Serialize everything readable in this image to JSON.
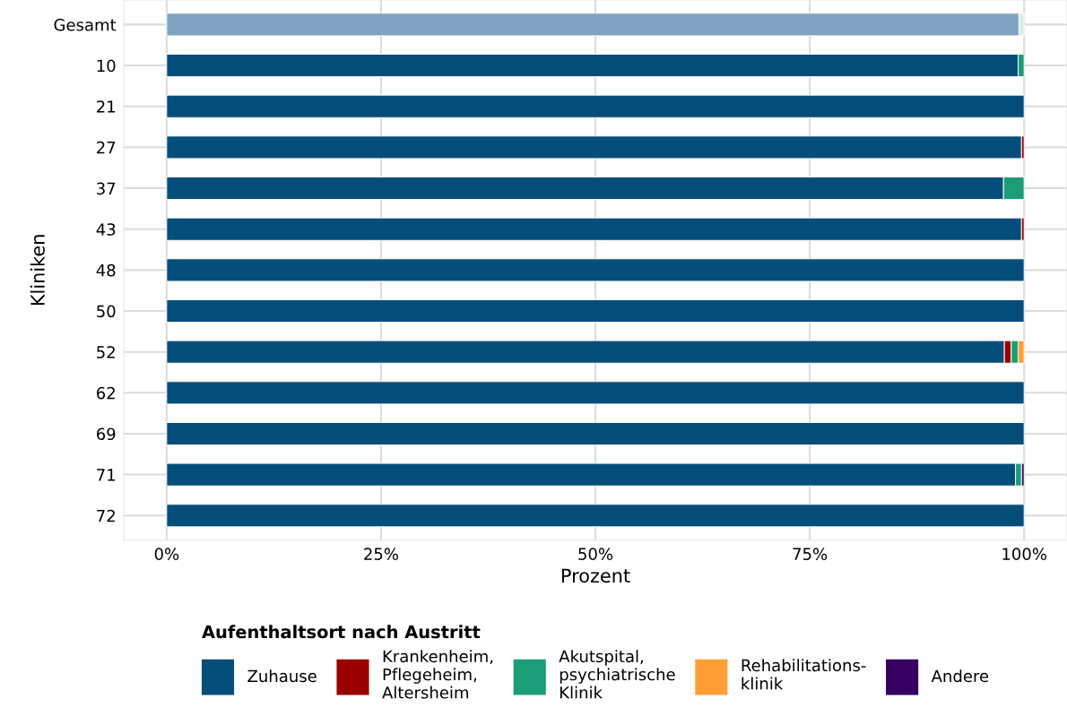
{
  "chart_data": {
    "type": "bar",
    "orientation": "horizontal",
    "stacked": true,
    "categories": [
      "Gesamt",
      "10",
      "21",
      "27",
      "37",
      "43",
      "48",
      "50",
      "52",
      "62",
      "69",
      "71",
      "72"
    ],
    "series": [
      {
        "name": "Zuhause",
        "color": "#054e7a",
        "colors": [
          "#7fa3c0",
          "#054e7a",
          "#054e7a",
          "#054e7a",
          "#054e7a",
          "#054e7a",
          "#054e7a",
          "#054e7a",
          "#054e7a",
          "#054e7a",
          "#054e7a",
          "#054e7a",
          "#054e7a"
        ],
        "values": [
          99.4,
          99.3,
          100,
          99.7,
          97.6,
          99.7,
          100,
          100,
          97.7,
          100,
          100,
          99.0,
          100
        ]
      },
      {
        "name": "Krankenheim,\nPflegeheim,\nAltersheim",
        "color": "#9b0000",
        "values": [
          0,
          0,
          0,
          0.3,
          0,
          0.3,
          0,
          0,
          0.8,
          0,
          0,
          0,
          0
        ]
      },
      {
        "name": "Akutspital,\npsychiatrische\nKlinik",
        "color": "#1b9e77",
        "colors": [
          "#d6ede6",
          "#1b9e77",
          "#1b9e77",
          "#1b9e77",
          "#1b9e77",
          "#1b9e77",
          "#1b9e77",
          "#1b9e77",
          "#1b9e77",
          "#1b9e77",
          "#1b9e77",
          "#1b9e77",
          "#1b9e77"
        ],
        "values": [
          0.6,
          0.7,
          0,
          0,
          2.4,
          0,
          0,
          0,
          0.8,
          0,
          0,
          0.7,
          0
        ]
      },
      {
        "name": "Rehabilitations-\nklinik",
        "color": "#ff9e35",
        "values": [
          0,
          0,
          0,
          0,
          0,
          0,
          0,
          0,
          0.7,
          0,
          0,
          0,
          0
        ]
      },
      {
        "name": "Andere",
        "color": "#35005f",
        "values": [
          0,
          0,
          0,
          0,
          0,
          0,
          0,
          0,
          0,
          0,
          0,
          0.3,
          0
        ]
      }
    ],
    "xlim": [
      -5,
      105
    ],
    "xticks": [
      {
        "value": 0,
        "label": "0%"
      },
      {
        "value": 25,
        "label": "25%"
      },
      {
        "value": 50,
        "label": "50%"
      },
      {
        "value": 75,
        "label": "75%"
      },
      {
        "value": 100,
        "label": "100%"
      }
    ],
    "xlabel": "Prozent",
    "ylabel": "Kliniken",
    "legend_title": "Aufenthaltsort nach Austritt",
    "legend": "bottom",
    "grid": true
  }
}
